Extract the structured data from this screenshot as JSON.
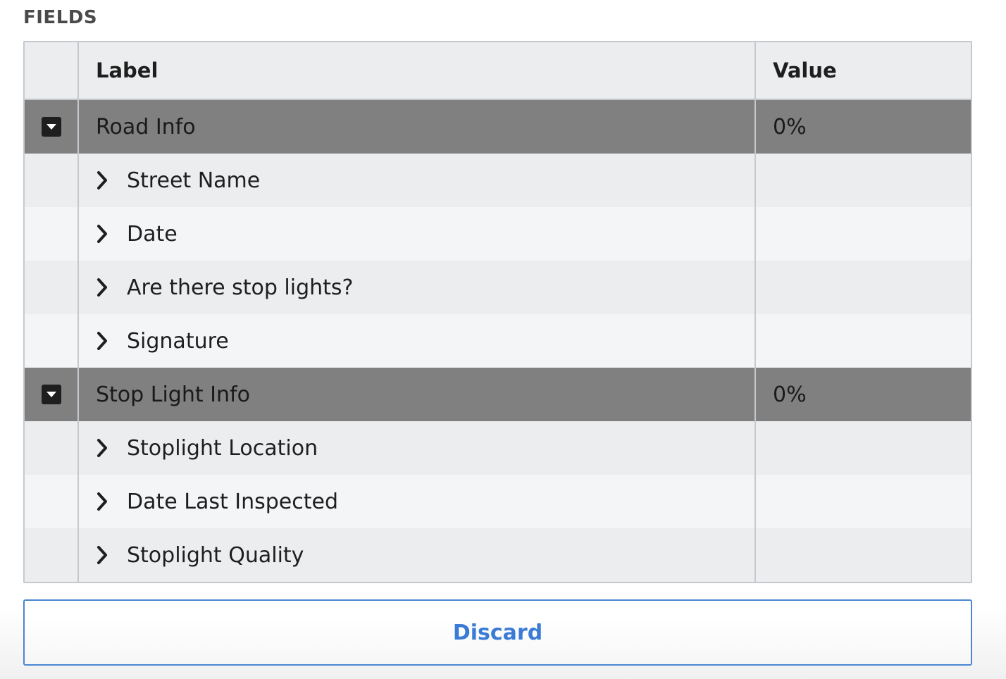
{
  "section": {
    "title": "FIELDS"
  },
  "table": {
    "headers": {
      "label": "Label",
      "value": "Value"
    },
    "groups": [
      {
        "label": "Road Info",
        "value": "0%",
        "icon": "collapse-caret-icon",
        "items": [
          {
            "label": "Street Name",
            "value": ""
          },
          {
            "label": "Date",
            "value": ""
          },
          {
            "label": "Are there stop lights?",
            "value": ""
          },
          {
            "label": "Signature",
            "value": ""
          }
        ]
      },
      {
        "label": "Stop Light Info",
        "value": "0%",
        "icon": "collapse-caret-icon",
        "items": [
          {
            "label": "Stoplight Location",
            "value": ""
          },
          {
            "label": "Date Last Inspected",
            "value": ""
          },
          {
            "label": "Stoplight Quality",
            "value": ""
          }
        ]
      }
    ]
  },
  "actions": {
    "discard_label": "Discard"
  },
  "colors": {
    "accent": "#3a7bd5",
    "group_row": "#808080",
    "header_bg": "#ebedef",
    "border": "#c5c9ce"
  }
}
